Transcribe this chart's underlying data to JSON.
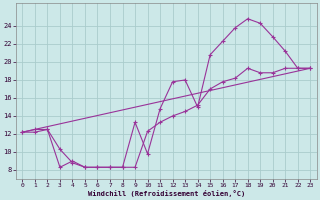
{
  "bg_color": "#cce8e8",
  "grid_color": "#aacccc",
  "line_color": "#993399",
  "xlabel": "Windchill (Refroidissement éolien,°C)",
  "xlim": [
    -0.5,
    23.5
  ],
  "ylim": [
    7.0,
    26.5
  ],
  "yticks": [
    8,
    10,
    12,
    14,
    16,
    18,
    20,
    22,
    24
  ],
  "xticks": [
    0,
    1,
    2,
    3,
    4,
    5,
    6,
    7,
    8,
    9,
    10,
    11,
    12,
    13,
    14,
    15,
    16,
    17,
    18,
    19,
    20,
    21,
    22,
    23
  ],
  "line1_x": [
    0,
    1,
    2,
    3,
    4,
    5,
    6,
    7,
    8,
    9,
    10,
    11,
    12,
    13,
    14,
    15,
    16,
    17,
    18,
    19,
    20,
    21,
    22,
    23
  ],
  "line1_y": [
    12.2,
    12.5,
    12.5,
    10.3,
    8.8,
    8.3,
    8.3,
    8.3,
    8.3,
    13.3,
    9.8,
    14.8,
    17.8,
    18.0,
    15.0,
    20.8,
    22.3,
    23.8,
    24.8,
    24.3,
    22.8,
    21.2,
    19.3,
    19.3
  ],
  "line2_x": [
    0,
    1,
    2,
    3,
    4,
    5,
    6,
    7,
    8,
    9,
    10,
    11,
    12,
    13,
    14,
    15,
    16,
    17,
    18,
    19,
    20,
    21,
    22,
    23
  ],
  "line2_y": [
    12.2,
    12.2,
    12.5,
    8.3,
    9.0,
    8.3,
    8.3,
    8.3,
    8.3,
    8.3,
    12.3,
    13.3,
    14.0,
    14.5,
    15.2,
    17.0,
    17.8,
    18.2,
    19.3,
    18.8,
    18.8,
    19.3,
    19.3,
    19.3
  ],
  "line3_x": [
    0,
    23
  ],
  "line3_y": [
    12.2,
    19.3
  ]
}
